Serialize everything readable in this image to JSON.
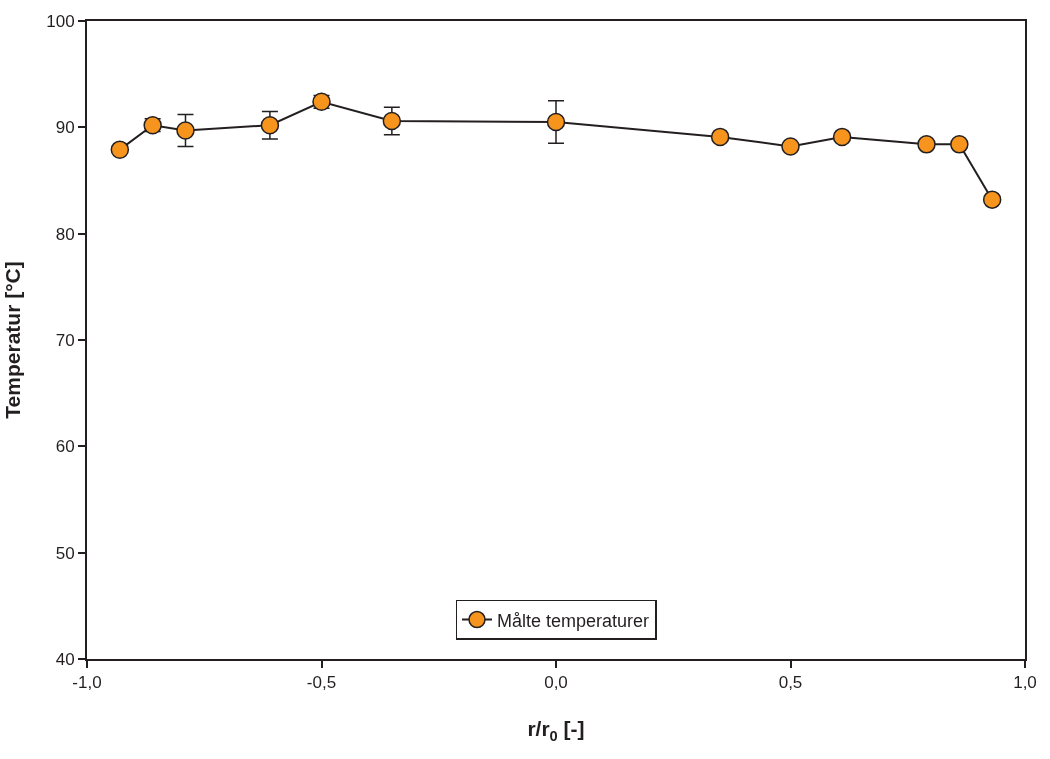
{
  "chart_data": {
    "type": "line",
    "xlabel": "r/r$_{0}$ [-]",
    "ylabel": "Temperatur [°C]",
    "x": [
      -0.93,
      -0.86,
      -0.79,
      -0.61,
      -0.5,
      -0.35,
      0.0,
      0.35,
      0.5,
      0.61,
      0.79,
      0.86,
      0.93
    ],
    "series": [
      {
        "name": "Målte temperaturer",
        "color": "#f7941d",
        "values": [
          87.9,
          90.2,
          89.7,
          90.2,
          92.4,
          90.6,
          90.5,
          89.1,
          88.2,
          89.1,
          88.4,
          88.4,
          83.2
        ],
        "errors": [
          0.2,
          0.6,
          1.5,
          1.3,
          0.6,
          1.3,
          2.0,
          null,
          null,
          null,
          null,
          null,
          null
        ]
      }
    ],
    "xlim": [
      -1.0,
      1.0
    ],
    "xticks": [
      {
        "value": -1.0,
        "label": "-1,0"
      },
      {
        "value": -0.5,
        "label": "-0,5"
      },
      {
        "value": 0.0,
        "label": "0,0"
      },
      {
        "value": 0.5,
        "label": "0,5"
      },
      {
        "value": 1.0,
        "label": "1,0"
      }
    ],
    "ylim": [
      40,
      100
    ],
    "yticks": [
      40,
      50,
      60,
      70,
      80,
      90,
      100
    ],
    "marker": "circle",
    "line_style": "solid",
    "legend": "bottom"
  }
}
